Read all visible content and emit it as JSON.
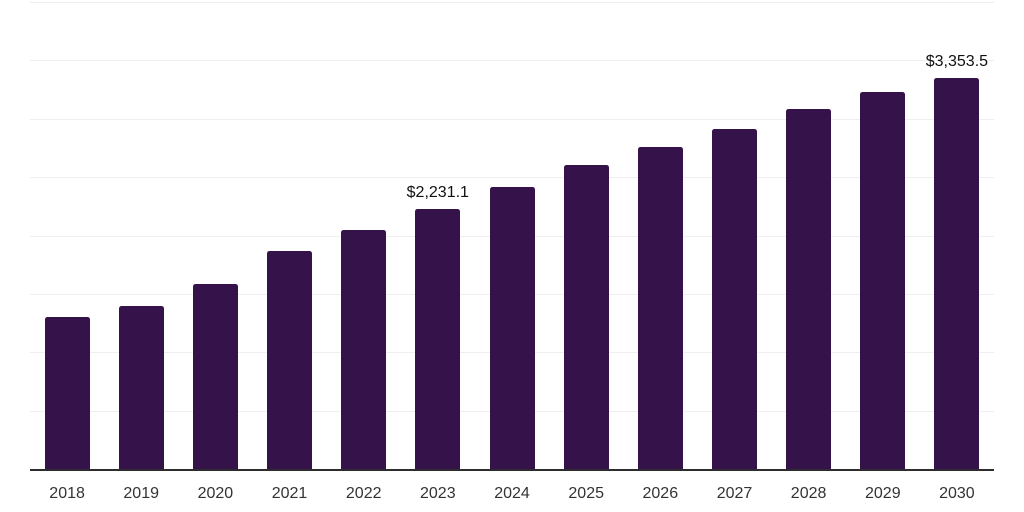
{
  "chart_data": {
    "type": "bar",
    "title": "",
    "xlabel": "",
    "ylabel": "",
    "categories": [
      "2018",
      "2019",
      "2020",
      "2021",
      "2022",
      "2023",
      "2024",
      "2025",
      "2026",
      "2027",
      "2028",
      "2029",
      "2030"
    ],
    "values": [
      1305,
      1400,
      1585,
      1870,
      2050,
      2231.1,
      2420,
      2600,
      2760,
      2915,
      3080,
      3230,
      3353.5
    ],
    "value_labels": {
      "2023": "$2,231.1",
      "2030": "$3,353.5"
    },
    "ylim": [
      0,
      4000
    ],
    "grid_step": 500,
    "grid": "horizontal-only",
    "legend": "none",
    "y_axis_labels_visible": false,
    "colors": {
      "bar": "#35124A",
      "gridline": "#efefef",
      "axis_line": "#2d2d2d",
      "tick_label": "#333333",
      "value_label": "#111111",
      "background": "#ffffff"
    }
  }
}
